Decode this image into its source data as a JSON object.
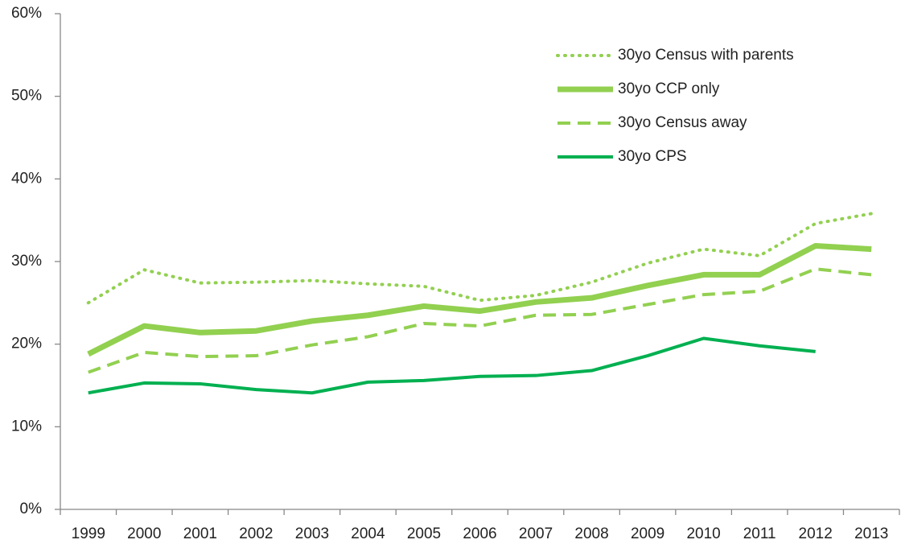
{
  "chart_data": {
    "type": "line",
    "categories": [
      "1999",
      "2000",
      "2001",
      "2002",
      "2003",
      "2004",
      "2005",
      "2006",
      "2007",
      "2008",
      "2009",
      "2010",
      "2011",
      "2012",
      "2013"
    ],
    "ylim": [
      0,
      60
    ],
    "yticks": [
      {
        "value": 0,
        "label": "0%"
      },
      {
        "value": 10,
        "label": "10%"
      },
      {
        "value": 20,
        "label": "20%"
      },
      {
        "value": 30,
        "label": "30%"
      },
      {
        "value": 40,
        "label": "40%"
      },
      {
        "value": 50,
        "label": "50%"
      },
      {
        "value": 60,
        "label": "60%"
      }
    ],
    "grid": false,
    "legend": "top-right",
    "series": [
      {
        "name": "30yo Census with parents",
        "color": "#92d050",
        "dash": "dotted",
        "linewidth": 4,
        "values": [
          25.0,
          29.0,
          27.4,
          27.5,
          27.7,
          27.3,
          27.0,
          25.3,
          25.9,
          27.5,
          29.8,
          31.5,
          30.7,
          34.6,
          35.8
        ]
      },
      {
        "name": "30yo CCP only",
        "color": "#92d050",
        "dash": "solid",
        "linewidth": 7,
        "values": [
          18.8,
          22.2,
          21.4,
          21.6,
          22.8,
          23.5,
          24.6,
          24.0,
          25.1,
          25.6,
          27.1,
          28.4,
          28.4,
          31.9,
          31.5
        ]
      },
      {
        "name": "30yo Census away",
        "color": "#92d050",
        "dash": "dashed",
        "linewidth": 4,
        "values": [
          16.6,
          19.0,
          18.5,
          18.6,
          19.9,
          20.9,
          22.5,
          22.2,
          23.5,
          23.6,
          24.8,
          26.0,
          26.4,
          29.1,
          28.4
        ]
      },
      {
        "name": "30yo CPS",
        "color": "#00b050",
        "dash": "solid",
        "linewidth": 4,
        "values": [
          14.1,
          15.3,
          15.2,
          14.5,
          14.1,
          15.4,
          15.6,
          16.1,
          16.2,
          16.8,
          18.6,
          20.7,
          19.8,
          19.1,
          null
        ]
      }
    ]
  }
}
